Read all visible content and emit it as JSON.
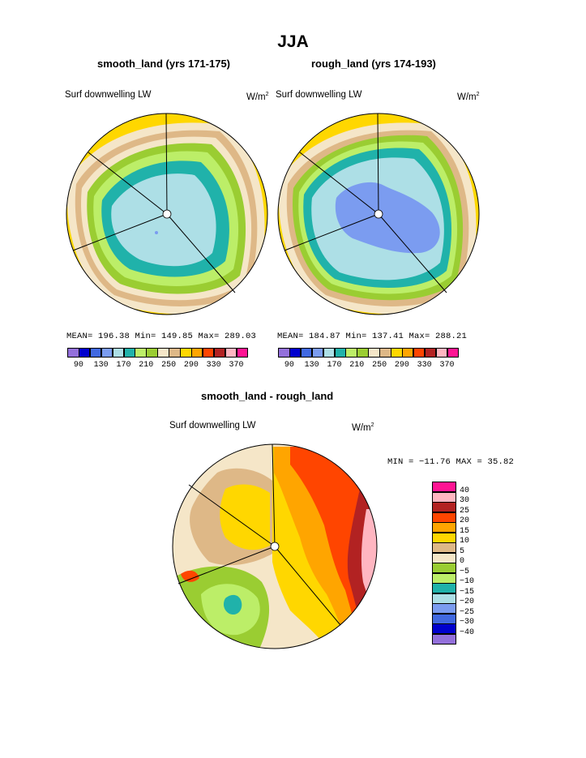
{
  "title": "JJA",
  "panels": [
    {
      "subtitle": "smooth_land (yrs 171-175)",
      "var_label": "Surf downwelling LW",
      "units_base": "W/m",
      "units_exp": "2",
      "stats": "MEAN= 196.38  Min= 149.85  Max= 289.03",
      "colorbar_labels": [
        "90",
        "130",
        "170",
        "210",
        "250",
        "290",
        "330",
        "370"
      ]
    },
    {
      "subtitle": "rough_land (yrs 174-193)",
      "var_label": "Surf downwelling LW",
      "units_base": "W/m",
      "units_exp": "2",
      "stats": "MEAN= 184.87  Min= 137.41  Max= 288.21",
      "colorbar_labels": [
        "90",
        "130",
        "170",
        "210",
        "250",
        "290",
        "330",
        "370"
      ]
    }
  ],
  "diff": {
    "subtitle": "smooth_land - rough_land",
    "var_label": "Surf downwelling LW",
    "units_base": "W/m",
    "units_exp": "2",
    "minmax": "MIN = −11.76 MAX =  35.82",
    "colorbar_labels": [
      "40",
      "30",
      "25",
      "20",
      "15",
      "10",
      "5",
      "0",
      "−5",
      "−10",
      "−15",
      "−20",
      "−25",
      "−30",
      "−40"
    ]
  },
  "chart_data": [
    {
      "type": "heatmap",
      "projection": "polar stereographic",
      "title": "smooth_land (yrs 171-175)",
      "variable": "Surf downwelling LW",
      "units": "W/m2",
      "mean": 196.38,
      "min": 149.85,
      "max": 289.03,
      "levels": [
        90,
        110,
        130,
        150,
        170,
        190,
        210,
        230,
        250,
        270,
        290,
        310,
        330,
        350,
        370
      ],
      "colors": [
        "#9370DB",
        "#0000CD",
        "#4169E1",
        "#7B9CF0",
        "#ADDFE6",
        "#20B2AA",
        "#BCEE68",
        "#9ACD32",
        "#F5E6C8",
        "#DEB887",
        "#FFD700",
        "#FFA500",
        "#FF4500",
        "#B22222",
        "#FFB6C1",
        "#FF1493"
      ]
    },
    {
      "type": "heatmap",
      "projection": "polar stereographic",
      "title": "rough_land (yrs 174-193)",
      "variable": "Surf downwelling LW",
      "units": "W/m2",
      "mean": 184.87,
      "min": 137.41,
      "max": 288.21,
      "levels": [
        90,
        110,
        130,
        150,
        170,
        190,
        210,
        230,
        250,
        270,
        290,
        310,
        330,
        350,
        370
      ],
      "colors": [
        "#9370DB",
        "#0000CD",
        "#4169E1",
        "#7B9CF0",
        "#ADDFE6",
        "#20B2AA",
        "#BCEE68",
        "#9ACD32",
        "#F5E6C8",
        "#DEB887",
        "#FFD700",
        "#FFA500",
        "#FF4500",
        "#B22222",
        "#FFB6C1",
        "#FF1493"
      ]
    },
    {
      "type": "heatmap",
      "projection": "polar stereographic",
      "title": "smooth_land - rough_land",
      "variable": "Surf downwelling LW",
      "units": "W/m2",
      "min": -11.76,
      "max": 35.82,
      "levels": [
        -40,
        -30,
        -25,
        -20,
        -15,
        -10,
        -5,
        0,
        5,
        10,
        15,
        20,
        25,
        30,
        40
      ],
      "colors": [
        "#9370DB",
        "#0000CD",
        "#4169E1",
        "#7B9CF0",
        "#ADDFE6",
        "#20B2AA",
        "#BCEE68",
        "#9ACD32",
        "#F5E6C8",
        "#DEB887",
        "#FFD700",
        "#FFA500",
        "#FF4500",
        "#B22222",
        "#FFB6C1",
        "#FF1493"
      ]
    }
  ]
}
